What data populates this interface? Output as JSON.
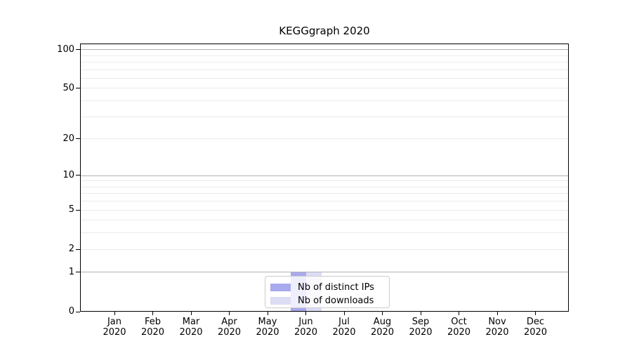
{
  "title": "KEGGgraph 2020",
  "chart_data": {
    "type": "bar",
    "title": "KEGGgraph 2020",
    "categories": [
      "Jan",
      "Feb",
      "Mar",
      "Apr",
      "May",
      "Jun",
      "Jul",
      "Aug",
      "Sep",
      "Oct",
      "Nov",
      "Dec"
    ],
    "category_year": "2020",
    "series": [
      {
        "name": "Nb of distinct IPs",
        "color": "#a9a9ee",
        "values": [
          0,
          0,
          0,
          0,
          0,
          1,
          0,
          0,
          0,
          0,
          0,
          0
        ]
      },
      {
        "name": "Nb of downloads",
        "color": "#dcdcf5",
        "values": [
          0,
          0,
          0,
          0,
          0,
          1,
          0,
          0,
          0,
          0,
          0,
          0
        ]
      }
    ],
    "y_axis": {
      "scale": "log10(value+1)",
      "range": [
        0,
        110
      ],
      "tick_values": [
        0,
        1,
        2,
        5,
        10,
        20,
        50,
        100
      ],
      "tick_labels": [
        "0",
        "1",
        "2",
        "5",
        "10",
        "20",
        "50",
        "100"
      ],
      "major_gridlines": [
        1,
        10,
        100
      ],
      "minor_gridlines": [
        2,
        3,
        4,
        5,
        6,
        7,
        8,
        9,
        20,
        30,
        40,
        50,
        60,
        70,
        80,
        90
      ]
    },
    "legend": {
      "position": "lower center",
      "entries": [
        "Nb of distinct IPs",
        "Nb of downloads"
      ]
    },
    "grid": true,
    "colors": {
      "bar_distinct_ips": "#a9a9ee",
      "bar_downloads": "#dcdcf5",
      "major_gridline": "#b0b0b0",
      "minor_gridline": "#ebebeb",
      "spine": "#000000",
      "text": "#000000",
      "background": "#ffffff"
    }
  }
}
